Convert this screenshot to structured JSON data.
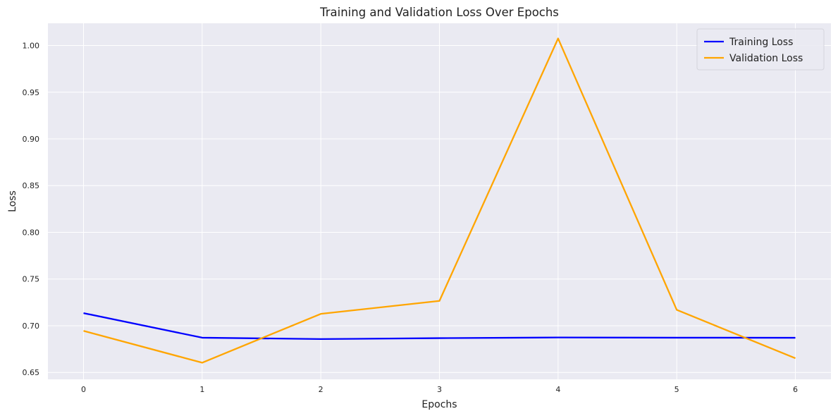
{
  "chart_data": {
    "type": "line",
    "title": "Training and Validation Loss Over Epochs",
    "xlabel": "Epochs",
    "ylabel": "Loss",
    "x": [
      0,
      1,
      2,
      3,
      4,
      5,
      6
    ],
    "xlim": [
      -0.3,
      6.3
    ],
    "ylim": [
      0.6426,
      1.0238
    ],
    "xticks": [
      0,
      1,
      2,
      3,
      4,
      5,
      6
    ],
    "yticks": [
      0.65,
      0.7,
      0.75,
      0.8,
      0.85,
      0.9,
      0.95,
      1.0
    ],
    "ytick_labels": [
      "0.65",
      "0.70",
      "0.75",
      "0.80",
      "0.85",
      "0.90",
      "0.95",
      "1.00"
    ],
    "grid": true,
    "legend_position": "top-right",
    "series": [
      {
        "name": "Training Loss",
        "color": "#0000ff",
        "values": [
          0.7135,
          0.6872,
          0.6857,
          0.6867,
          0.6874,
          0.6872,
          0.6871
        ]
      },
      {
        "name": "Validation Loss",
        "color": "#ffa500",
        "values": [
          0.6945,
          0.6604,
          0.7127,
          0.7266,
          1.0075,
          0.717,
          0.6652
        ]
      }
    ]
  }
}
